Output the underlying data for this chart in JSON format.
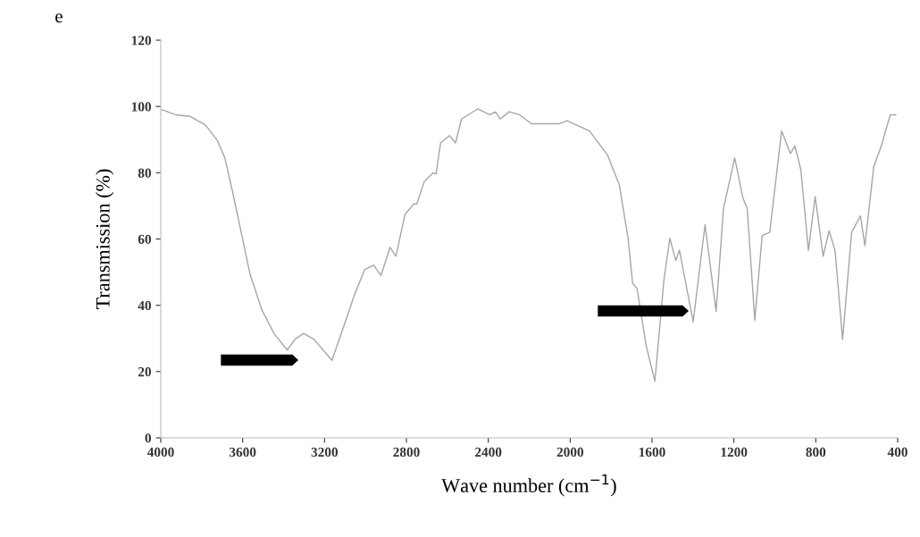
{
  "chart_data": {
    "type": "line",
    "xlabel": "Wave number (cm$^{−1}$)",
    "ylabel": "Transmission (%)",
    "annotations": [
      "e"
    ],
    "x": [
      4000,
      3993,
      3927,
      3856,
      3782,
      3725,
      3687,
      3651,
      3607,
      3564,
      3506,
      3447,
      3382,
      3345,
      3302,
      3251,
      3164,
      3113,
      3054,
      3004,
      2960,
      2924,
      2880,
      2851,
      2807,
      2764,
      2749,
      2713,
      2669,
      2655,
      2633,
      2589,
      2560,
      2531,
      2451,
      2393,
      2364,
      2342,
      2298,
      2247,
      2189,
      2051,
      2015,
      1905,
      1818,
      1760,
      1717,
      1695,
      1673,
      1629,
      1586,
      1542,
      1513,
      1484,
      1466,
      1399,
      1341,
      1287,
      1251,
      1196,
      1156,
      1135,
      1098,
      1062,
      1025,
      967,
      924,
      902,
      873,
      836,
      803,
      764,
      735,
      706,
      669,
      625,
      582,
      560,
      517,
      480,
      436,
      409
    ],
    "series": [
      {
        "color": "#a6a6a6",
        "values": [
          99,
          99,
          97.5,
          97,
          94.4,
          89.9,
          84.5,
          74.7,
          62,
          49.4,
          38.6,
          31.5,
          26.5,
          29.7,
          31.5,
          29.7,
          23.4,
          32.4,
          43.1,
          50.8,
          52.1,
          49,
          57.5,
          54.8,
          67.4,
          70.6,
          70.6,
          77.3,
          80,
          79.6,
          89,
          91.2,
          89,
          96.2,
          99.3,
          97.5,
          98.4,
          96.2,
          98.4,
          97.5,
          94.8,
          94.8,
          95.7,
          92.6,
          85.4,
          76.4,
          60.2,
          46.7,
          45,
          27.9,
          17.1,
          47.6,
          60.2,
          53.5,
          56.6,
          35,
          64.3,
          38.2,
          69.2,
          84.5,
          72.4,
          69.2,
          35.5,
          61.1,
          62,
          92.6,
          85.8,
          88.1,
          80.9,
          56.6,
          72.8,
          54.8,
          62.5,
          56.6,
          29.7,
          62,
          67,
          58,
          81.8,
          88.1,
          97.5,
          97.5
        ]
      }
    ],
    "xlim": [
      4000,
      400
    ],
    "xticks": [
      4000,
      3600,
      3200,
      2800,
      2400,
      2000,
      1600,
      1200,
      800,
      400
    ],
    "ylim": [
      0,
      120
    ],
    "yticks": [
      0,
      20,
      40,
      60,
      80,
      100,
      120
    ],
    "grid": false,
    "legend": false,
    "marker": "none",
    "line_style": "solid"
  }
}
